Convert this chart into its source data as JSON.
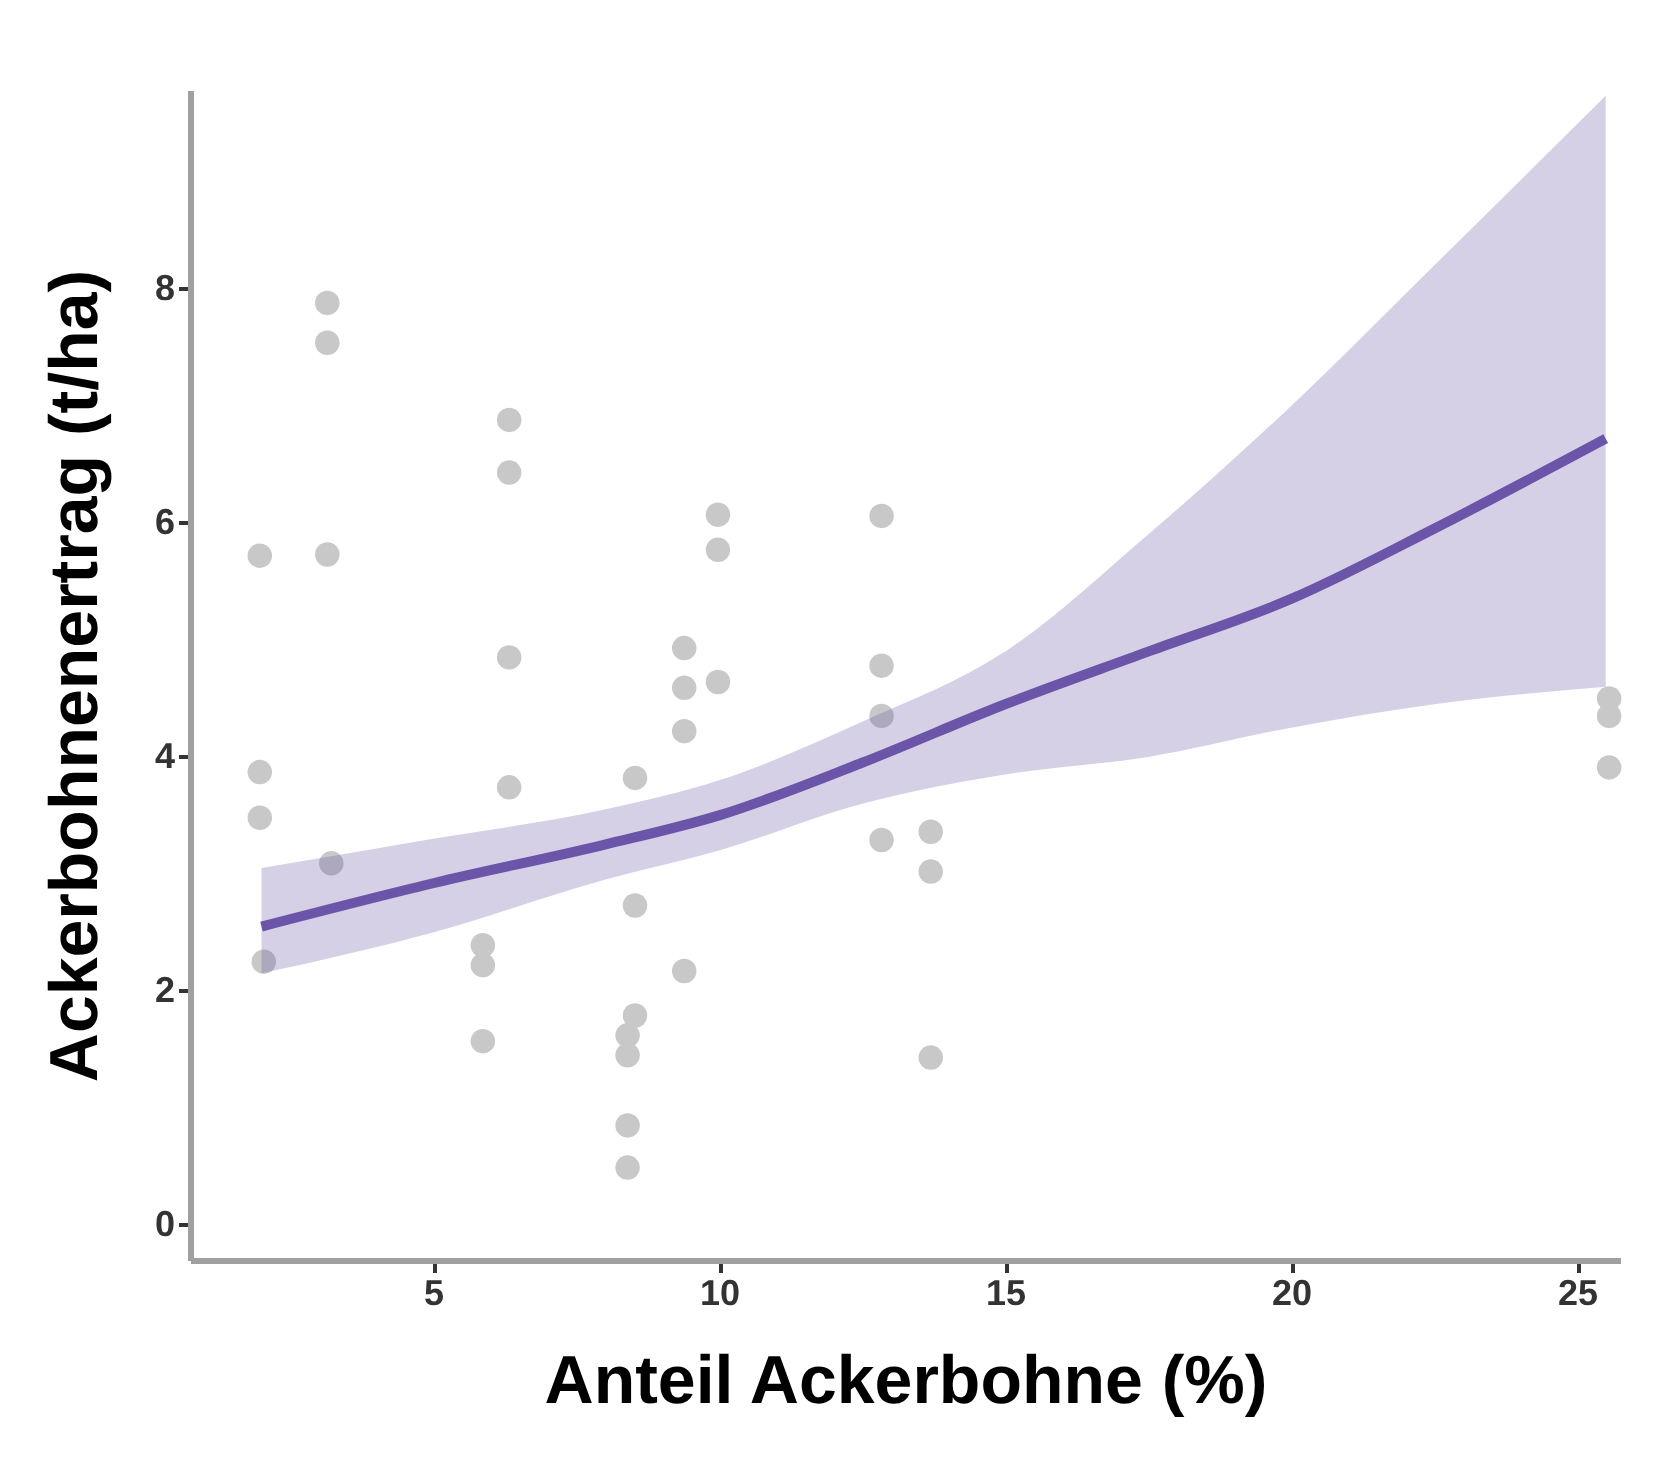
{
  "chart_data": {
    "type": "scatter",
    "xlabel": "Anteil Ackerbohne (%)",
    "ylabel": "Ackerbohnenertrag (t/ha)",
    "xlim": [
      0.75,
      25.75
    ],
    "ylim": [
      -0.3,
      9.7
    ],
    "xticks": [
      5,
      10,
      15,
      20,
      25
    ],
    "yticks": [
      0,
      2,
      4,
      6,
      8
    ],
    "grid": false,
    "series": [
      {
        "type": "scatter",
        "marker": "circle",
        "color": "#c8c8c8",
        "x": [
          3.15,
          3.15,
          6.33,
          6.33,
          9.98,
          9.98,
          1.97,
          3.15,
          6.33,
          9.39,
          9.39,
          9.98,
          9.39,
          1.97,
          6.33,
          8.53,
          12.84,
          12.84,
          1.97,
          3.22,
          12.84,
          13.7,
          13.7,
          8.53,
          2.04,
          5.87,
          5.87,
          9.39,
          5.87,
          8.53,
          8.4,
          8.4,
          13.7,
          8.4,
          8.4,
          12.84,
          25.56,
          25.56,
          25.56
        ],
        "values": [
          7.88,
          7.54,
          6.88,
          6.43,
          6.07,
          5.77,
          5.72,
          5.73,
          4.85,
          4.93,
          4.59,
          4.64,
          4.22,
          3.87,
          3.74,
          3.82,
          4.78,
          4.35,
          3.48,
          3.09,
          3.29,
          3.36,
          3.02,
          2.73,
          2.25,
          2.39,
          2.22,
          2.17,
          1.57,
          1.79,
          1.62,
          1.45,
          1.43,
          0.85,
          0.49,
          6.06,
          4.5,
          4.35,
          3.91
        ]
      },
      {
        "type": "line",
        "color": "#6a55a8",
        "x": [
          2,
          5,
          8,
          10,
          12.5,
          15,
          17.5,
          20,
          22.5,
          25.5
        ],
        "values": [
          2.55,
          2.92,
          3.25,
          3.5,
          3.95,
          4.45,
          4.9,
          5.35,
          5.95,
          6.72
        ],
        "lower": [
          2.15,
          2.5,
          2.95,
          3.2,
          3.6,
          3.85,
          4.0,
          4.25,
          4.45,
          4.6
        ],
        "upper": [
          3.05,
          3.3,
          3.55,
          3.8,
          4.3,
          4.9,
          5.9,
          7.0,
          8.2,
          9.65
        ]
      }
    ]
  }
}
